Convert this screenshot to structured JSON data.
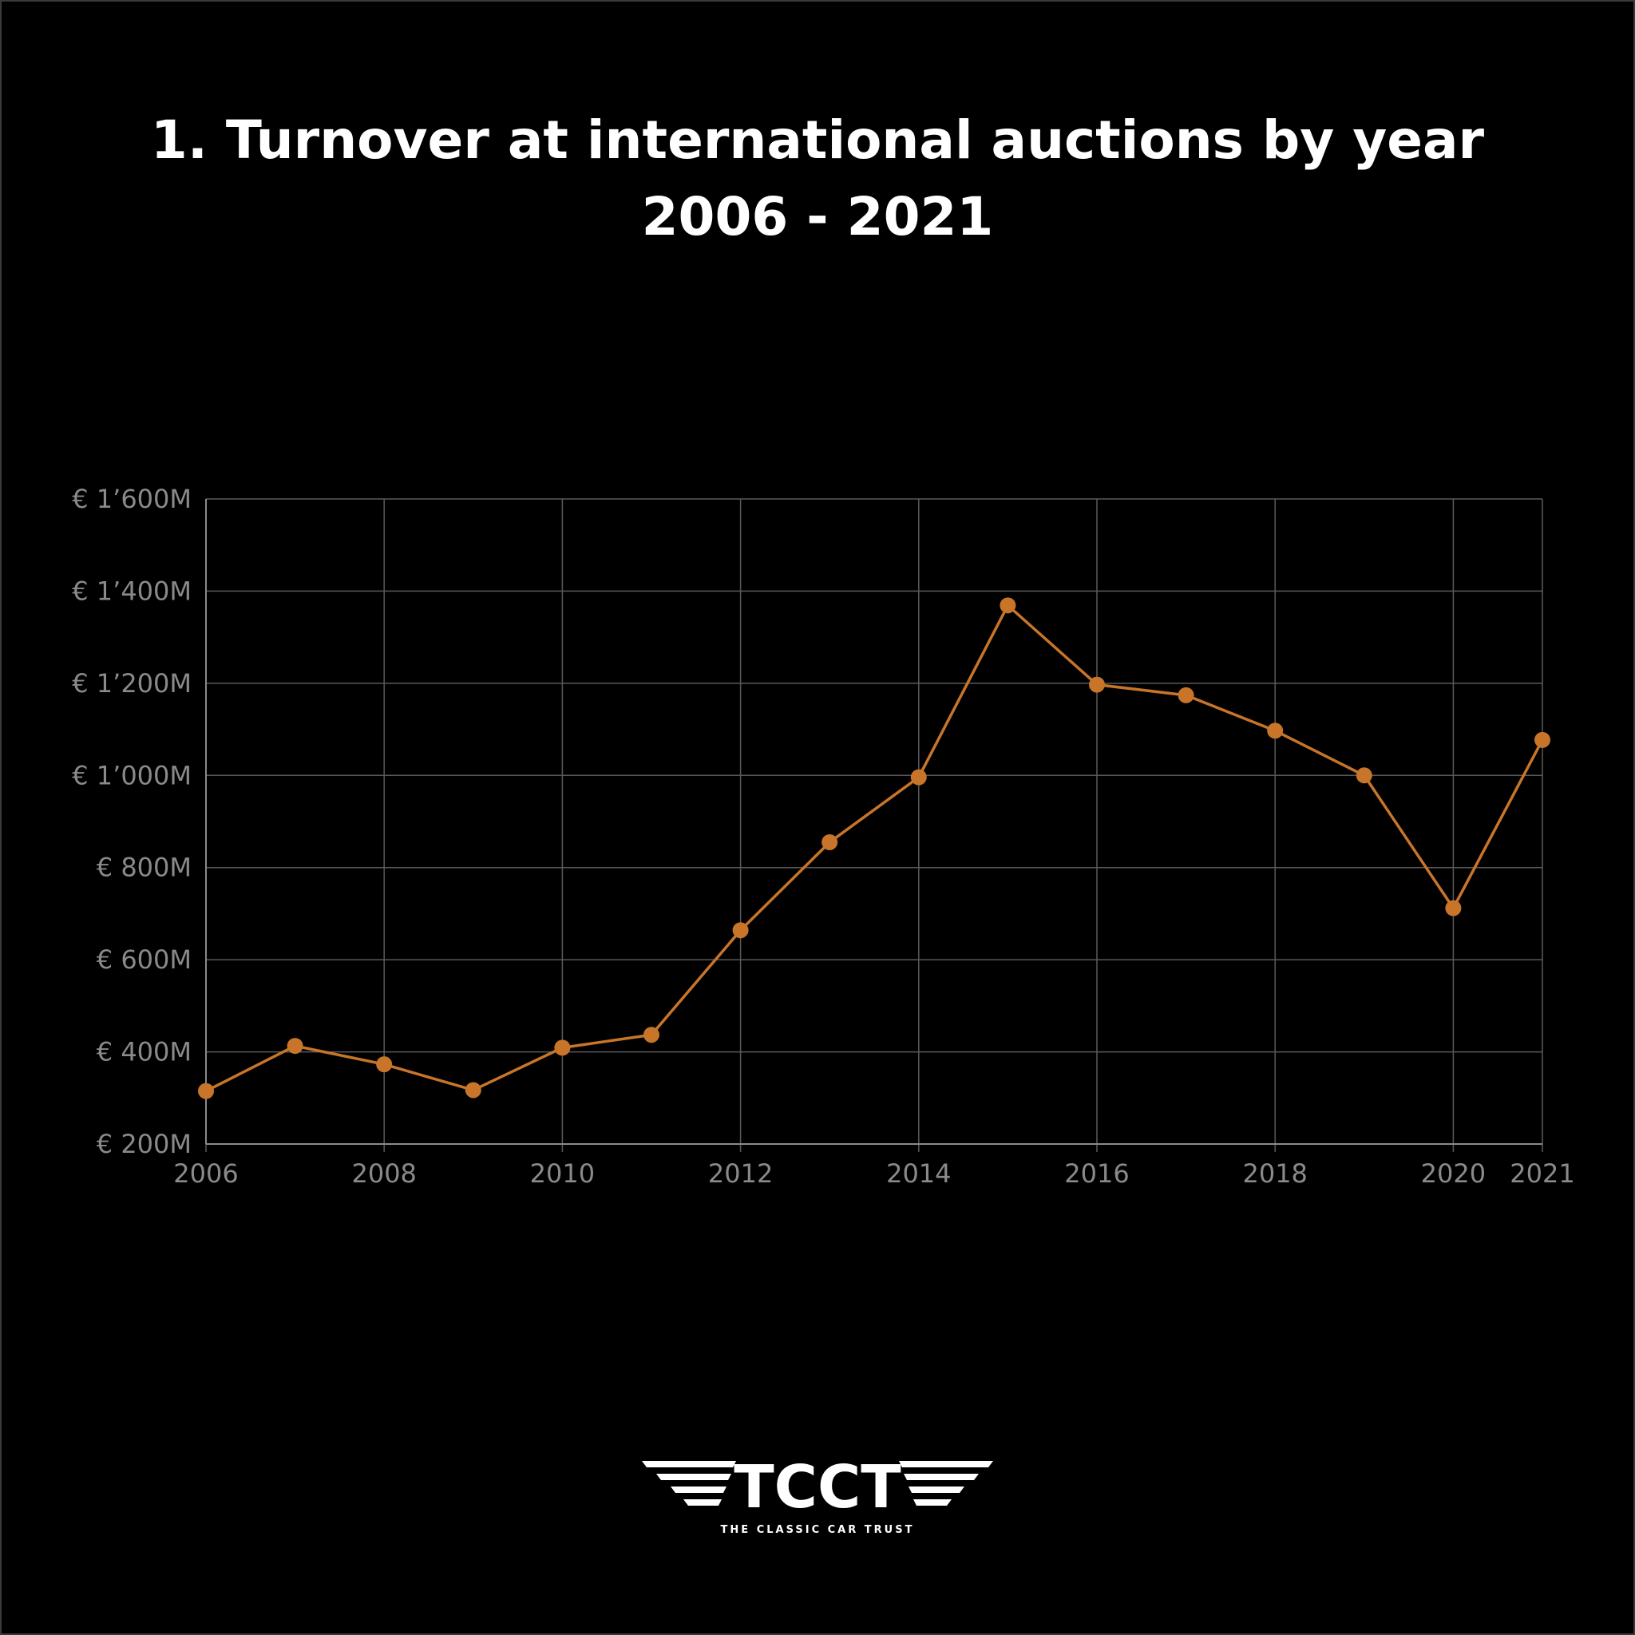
{
  "title_line1": "1. Turnover at international auctions by year",
  "title_line2": "2006 - 2021",
  "logo": {
    "wordmark": "TCCT",
    "tagline": "THE CLASSIC CAR TRUST"
  },
  "colors": {
    "background": "#000000",
    "line": "#c8752a",
    "grid": "#5a5a5a",
    "tick_text": "#8a8a8a",
    "title": "#ffffff"
  },
  "chart_data": {
    "type": "line",
    "title": "1. Turnover at international auctions by year 2006 - 2021",
    "xlabel": "",
    "ylabel": "",
    "x": [
      2006,
      2007,
      2008,
      2009,
      2010,
      2011,
      2012,
      2013,
      2014,
      2015,
      2016,
      2017,
      2018,
      2019,
      2020,
      2021
    ],
    "series": [
      {
        "values": [
          315,
          413,
          373,
          317,
          409,
          437,
          664,
          855,
          996,
          1369,
          1197,
          1174,
          1097,
          1000,
          712,
          1077
        ]
      }
    ],
    "xlim": [
      2006,
      2021
    ],
    "ylim": [
      200,
      1600
    ],
    "x_ticks": [
      2006,
      2008,
      2010,
      2012,
      2014,
      2016,
      2018,
      2020,
      2021
    ],
    "x_tick_labels": [
      "2006",
      "2008",
      "2010",
      "2012",
      "2014",
      "2016",
      "2018",
      "2020",
      "2021"
    ],
    "y_ticks": [
      200,
      400,
      600,
      800,
      1000,
      1200,
      1400,
      1600
    ],
    "y_tick_labels": [
      "€ 200M",
      "€ 400M",
      "€ 600M",
      "€ 800M",
      "€ 1’000M",
      "€ 1’200M",
      "€ 1’400M",
      "€ 1’600M"
    ],
    "grid": true,
    "legend": "none"
  }
}
